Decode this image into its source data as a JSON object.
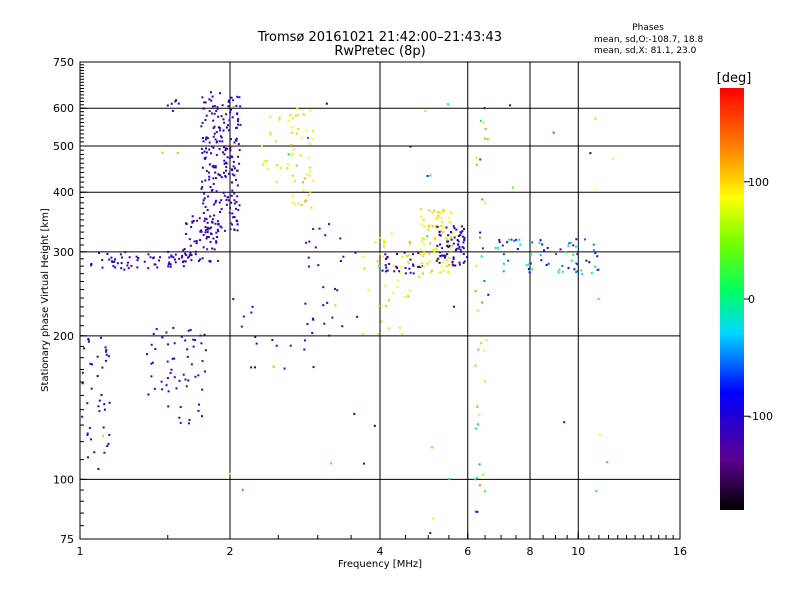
{
  "chart_data": {
    "type": "scatter",
    "title": "Tromsø 20161021 21:42:00–21:43:43",
    "subtitle": "RwPretec (8p)",
    "xlabel": "Frequency [MHz]",
    "ylabel": "Stationary phase Virtual Height [km]",
    "x_scale": "log",
    "y_scale": "log",
    "xlim": [
      1,
      16
    ],
    "ylim": [
      75,
      750
    ],
    "x_ticks": [
      1,
      2,
      4,
      6,
      8,
      10,
      16
    ],
    "x_tick_labels": [
      "1",
      "2",
      "4",
      "6",
      "8",
      "10",
      "16"
    ],
    "y_ticks": [
      75,
      100,
      200,
      300,
      400,
      500,
      600,
      750
    ],
    "y_tick_labels": [
      "75",
      "100",
      "200",
      "300",
      "400",
      "500",
      "600",
      "750"
    ],
    "grid": true,
    "color_scale": {
      "label": "[deg]",
      "min": -180,
      "max": 180,
      "ticks": [
        100,
        0,
        -100
      ],
      "tick_labels": [
        "100",
        "0",
        "-100"
      ]
    },
    "legend_title": "Phases",
    "stats": [
      "mean, sd,O:-108.7, 18.8",
      "mean, sd,X:  81.1, 23.0"
    ],
    "clusters": [
      {
        "x0": 1.05,
        "x1": 1.65,
        "y0": 275,
        "y1": 300,
        "phase": -110,
        "n": 60,
        "phase_spread": 20
      },
      {
        "x0": 1.6,
        "x1": 1.9,
        "y0": 285,
        "y1": 360,
        "phase": -110,
        "n": 70,
        "phase_spread": 20
      },
      {
        "x0": 1.75,
        "x1": 2.1,
        "y0": 330,
        "y1": 650,
        "phase": -112,
        "n": 220,
        "phase_spread": 18
      },
      {
        "x0": 1.5,
        "x1": 1.6,
        "y0": 590,
        "y1": 625,
        "phase": -100,
        "n": 6,
        "phase_spread": 15
      },
      {
        "x0": 2.3,
        "x1": 2.7,
        "y0": 380,
        "y1": 600,
        "phase": 80,
        "n": 20,
        "phase_spread": 25
      },
      {
        "x0": 2.65,
        "x1": 2.95,
        "y0": 370,
        "y1": 610,
        "phase": 95,
        "n": 40,
        "phase_spread": 20
      },
      {
        "x0": 2.1,
        "x1": 3.0,
        "y0": 170,
        "y1": 235,
        "phase": -110,
        "n": 18,
        "phase_spread": 20
      },
      {
        "x0": 2.8,
        "x1": 3.6,
        "y0": 200,
        "y1": 345,
        "phase": -120,
        "n": 25,
        "phase_spread": 20
      },
      {
        "x0": 3.7,
        "x1": 4.8,
        "y0": 200,
        "y1": 330,
        "phase": 90,
        "n": 40,
        "phase_spread": 25
      },
      {
        "x0": 4.0,
        "x1": 4.9,
        "y0": 270,
        "y1": 300,
        "phase": -100,
        "n": 30,
        "phase_spread": 20
      },
      {
        "x0": 4.8,
        "x1": 5.6,
        "y0": 270,
        "y1": 370,
        "phase": 95,
        "n": 90,
        "phase_spread": 20
      },
      {
        "x0": 5.2,
        "x1": 6.0,
        "y0": 280,
        "y1": 340,
        "phase": -105,
        "n": 70,
        "phase_spread": 18
      },
      {
        "x0": 6.2,
        "x1": 6.6,
        "y0": 85,
        "y1": 620,
        "phase": 20,
        "n": 40,
        "phase_spread": 120
      },
      {
        "x0": 6.8,
        "x1": 11.0,
        "y0": 270,
        "y1": 320,
        "phase": -60,
        "n": 70,
        "phase_spread": 80
      },
      {
        "x0": 1.0,
        "x1": 1.15,
        "y0": 105,
        "y1": 200,
        "phase": -110,
        "n": 40,
        "phase_spread": 18
      },
      {
        "x0": 1.35,
        "x1": 1.8,
        "y0": 130,
        "y1": 210,
        "phase": -115,
        "n": 60,
        "phase_spread": 18
      },
      {
        "x0": 1.1,
        "x1": 12.0,
        "y0": 75,
        "y1": 650,
        "phase": 0,
        "n": 45,
        "phase_spread": 170
      }
    ]
  }
}
